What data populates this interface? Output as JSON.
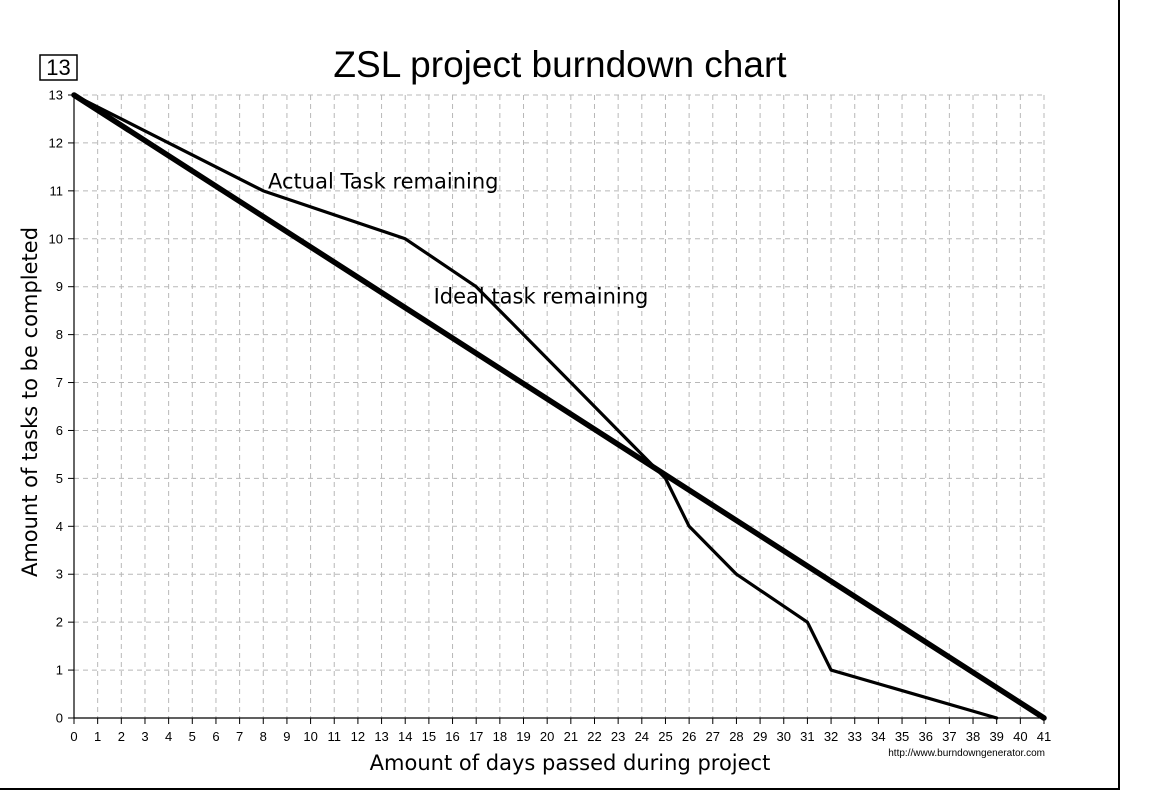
{
  "chart_data": {
    "type": "line",
    "title": "ZSL project burndown chart",
    "badge": "13",
    "xlabel": "Amount of days passed during project",
    "ylabel": "Amount of tasks to be completed",
    "credit": "http://www.burndowngenerator.com",
    "xlim": [
      0,
      41
    ],
    "ylim": [
      0,
      13
    ],
    "x_ticks": [
      0,
      1,
      2,
      3,
      4,
      5,
      6,
      7,
      8,
      9,
      10,
      11,
      12,
      13,
      14,
      15,
      16,
      17,
      18,
      19,
      20,
      21,
      22,
      23,
      24,
      25,
      26,
      27,
      28,
      29,
      30,
      31,
      32,
      33,
      34,
      35,
      36,
      37,
      38,
      39,
      40,
      41
    ],
    "y_ticks": [
      0,
      1,
      2,
      3,
      4,
      5,
      6,
      7,
      8,
      9,
      10,
      11,
      12,
      13
    ],
    "grid": true,
    "series": [
      {
        "name": "Actual Task remaining",
        "x": [
          0,
          4,
          8,
          14,
          17,
          19,
          21,
          23,
          25,
          26,
          28,
          31,
          32,
          39
        ],
        "y": [
          13,
          12,
          11,
          10,
          9,
          8,
          7,
          6,
          5,
          4,
          3,
          2,
          1,
          0
        ]
      },
      {
        "name": "Ideal task remaining",
        "x": [
          0,
          41
        ],
        "y": [
          13,
          0
        ]
      }
    ],
    "annotations": [
      {
        "text": "Actual Task remaining",
        "x": 8.2,
        "y": 11.05
      },
      {
        "text": "Ideal task remaining",
        "x": 15.2,
        "y": 8.65
      }
    ]
  }
}
